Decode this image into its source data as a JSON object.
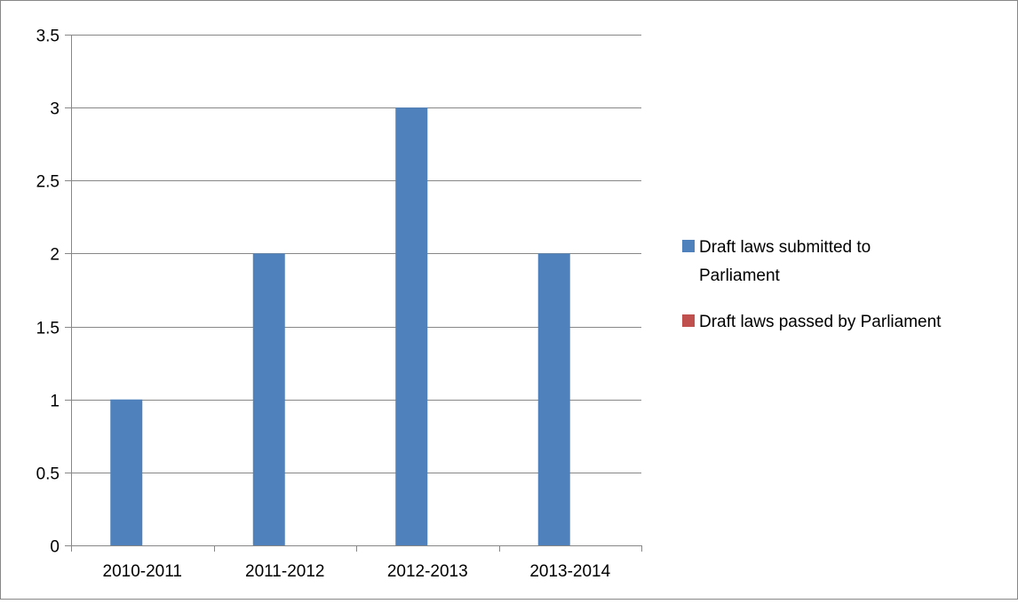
{
  "chart_data": {
    "type": "bar",
    "title": "",
    "xlabel": "",
    "ylabel": "",
    "categories": [
      "2010-2011",
      "2011-2012",
      "2012-2013",
      "2013-2014"
    ],
    "series": [
      {
        "name": "Draft laws submitted to Parliament",
        "values": [
          1,
          2,
          3,
          2
        ],
        "color": "#4F81BD"
      },
      {
        "name": "Draft laws passed by Parliament",
        "values": [
          0,
          0,
          0,
          0
        ],
        "color": "#C0504D"
      }
    ],
    "ylim": [
      0,
      3.5
    ],
    "y_ticks": [
      "0",
      "0.5",
      "1",
      "1.5",
      "2",
      "2.5",
      "3",
      "3.5"
    ],
    "grid": true,
    "legend_position": "right"
  },
  "legend": {
    "items": [
      {
        "lines": [
          "Draft laws submitted to",
          "Parliament"
        ]
      },
      {
        "lines": [
          "Draft laws passed by Parliament"
        ]
      }
    ]
  },
  "colors": {
    "gridline": "#878787",
    "axis": "#878787",
    "frame": "#878787"
  }
}
